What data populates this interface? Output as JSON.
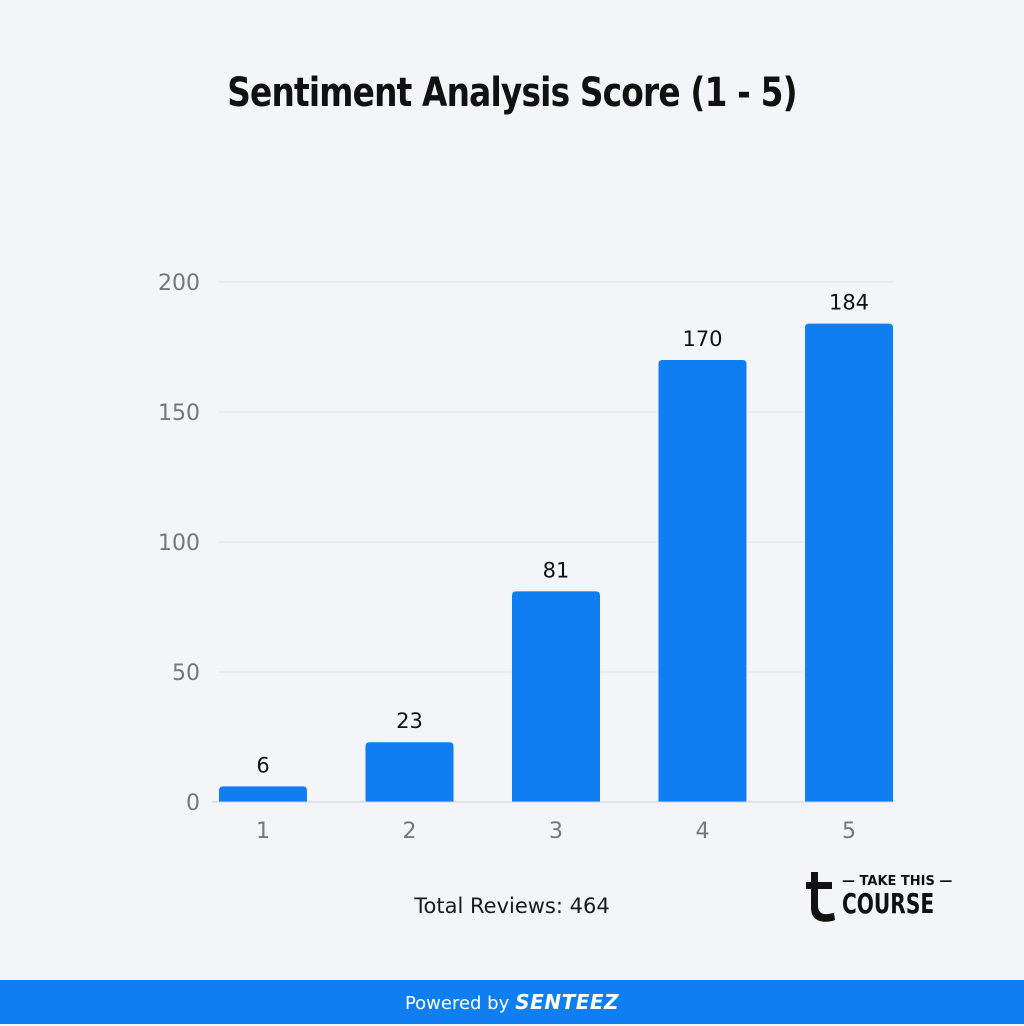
{
  "chart_data": {
    "type": "bar",
    "title": "Sentiment Analysis Score (1 - 5)",
    "categories": [
      "1",
      "2",
      "3",
      "4",
      "5"
    ],
    "values": [
      6,
      23,
      81,
      170,
      184
    ],
    "ylim": [
      0,
      200
    ],
    "yticks": [
      0,
      50,
      100,
      150,
      200
    ],
    "grid": true,
    "bar_color": "#0f7ef0",
    "xlabel": "",
    "ylabel": ""
  },
  "footnote": "Total Reviews: 464",
  "logo": {
    "line1": "TAKE THIS",
    "line2": "COURSE",
    "icon": "t-letter-icon"
  },
  "footer": {
    "prefix": "Powered by",
    "brand": "SENTEEZ",
    "color": "#0f7ef0"
  }
}
